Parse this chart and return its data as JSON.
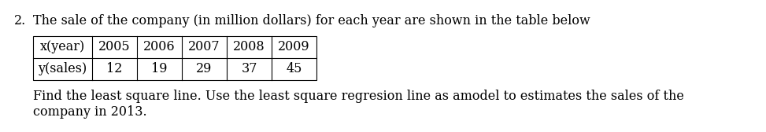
{
  "title_number": "2.",
  "title_text": "The sale of the company (in million dollars) for each year are shown in the table below",
  "row1_label": "x(year)",
  "row2_label": "y(sales)",
  "col_headers": [
    "2005",
    "2006",
    "2007",
    "2008",
    "2009"
  ],
  "col_values": [
    "12",
    "19",
    "29",
    "37",
    "45"
  ],
  "footer_line1": "Find the least square line. Use the least square regresion line as amodel to estimates the sales of the",
  "footer_line2": "company in 2013.",
  "font_family": "serif",
  "font_size": 11.5,
  "bg_color": "#ffffff",
  "text_color": "#000000",
  "fig_width": 9.73,
  "fig_height": 1.68,
  "dpi": 100
}
